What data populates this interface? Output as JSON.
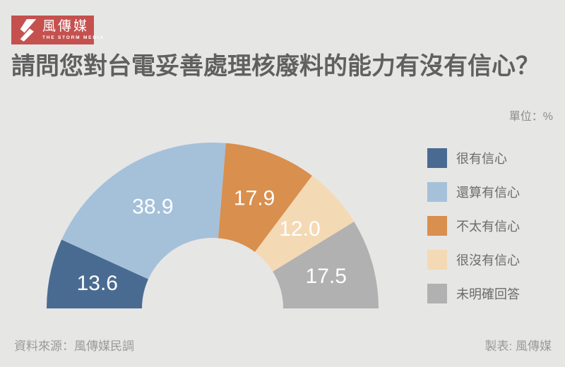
{
  "brand": {
    "name": "風傳媒",
    "tagline": "THE STORM MEDIA",
    "logo_bg": "#c5514f",
    "logo_icon": "lightning-bolt"
  },
  "title": "請問您對台電妥善處理核廢料的能力有沒有信心？",
  "unit_label": "單位：%",
  "footer": {
    "source": "資料來源：風傳媒民調",
    "credit": "製表: 風傳媒"
  },
  "chart_data": {
    "type": "pie",
    "subtype": "half-donut",
    "title": "請問您對台電妥善處理核廢料的能力有沒有信心？",
    "unit": "%",
    "categories": [
      "很有信心",
      "還算有信心",
      "不太有信心",
      "很沒有信心",
      "未明確回答"
    ],
    "values": [
      13.6,
      38.9,
      17.9,
      12.0,
      17.5
    ],
    "colors": [
      "#4a6b91",
      "#a5c1da",
      "#d98f4e",
      "#f4d9b5",
      "#b2b1b2"
    ],
    "value_label_color": "#ffffff",
    "start_angle_deg": 180,
    "end_angle_deg": 0,
    "legend_position": "right",
    "grid": false
  }
}
